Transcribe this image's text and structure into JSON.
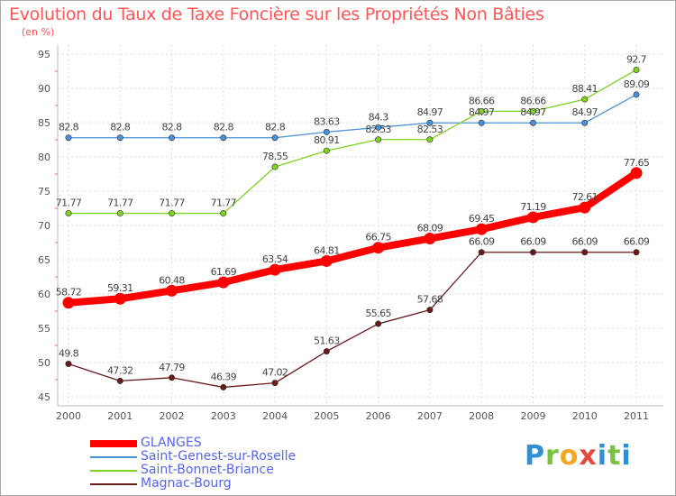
{
  "title": "Evolution du Taux de Taxe Foncière sur les Propriétés Non Bâties",
  "subtitle": "(en %)",
  "brand": "Proxiti",
  "chart_data": {
    "type": "line",
    "x": [
      "2000",
      "2001",
      "2002",
      "2003",
      "2004",
      "2005",
      "2006",
      "2007",
      "2008",
      "2009",
      "2010",
      "2011"
    ],
    "ylim": [
      45,
      95
    ],
    "yticks": [
      "45",
      "50",
      "55",
      "60",
      "65",
      "70",
      "75",
      "80",
      "85",
      "90",
      "95"
    ],
    "grid": true,
    "legend_placement": "bottom-left",
    "series": [
      {
        "name": "GLANGES",
        "color": "#ff0000",
        "values": [
          58.72,
          59.31,
          60.48,
          61.69,
          63.54,
          64.81,
          66.75,
          68.09,
          69.45,
          71.19,
          72.61,
          77.65
        ],
        "labels": [
          "58.72",
          "59.31",
          "60.48",
          "61.69",
          "63.54",
          "64.81",
          "66.75",
          "68.09",
          "69.45",
          "71.19",
          "72.61",
          "77.65"
        ]
      },
      {
        "name": "Saint-Genest-sur-Roselle",
        "color": "#4a90d9",
        "values": [
          82.8,
          82.8,
          82.8,
          82.8,
          82.8,
          83.63,
          84.3,
          84.97,
          84.97,
          84.97,
          84.97,
          89.09
        ],
        "labels": [
          "82.8",
          "82.8",
          "82.8",
          "82.8",
          "82.8",
          "83.63",
          "84.3",
          "84.97",
          "84.97",
          "84.97",
          "84.97",
          "89.09"
        ]
      },
      {
        "name": "Saint-Bonnet-Briance",
        "color": "#7ed321",
        "values": [
          71.77,
          71.77,
          71.77,
          71.77,
          78.55,
          80.91,
          82.53,
          82.53,
          86.66,
          86.66,
          88.41,
          92.7
        ],
        "labels": [
          "71.77",
          "71.77",
          "71.77",
          "71.77",
          "78.55",
          "80.91",
          "82.53",
          "82.53",
          "86.66",
          "86.66",
          "88.41",
          "92.7"
        ]
      },
      {
        "name": "Magnac-Bourg",
        "color": "#6b1a1a",
        "values": [
          49.8,
          47.32,
          47.79,
          46.39,
          47.02,
          51.63,
          55.65,
          57.68,
          66.09,
          66.09,
          66.09,
          66.09
        ],
        "labels": [
          "49.8",
          "47.32",
          "47.79",
          "46.39",
          "47.02",
          "51.63",
          "55.65",
          "57.68",
          "66.09",
          "66.09",
          "66.09",
          "66.09"
        ]
      }
    ]
  }
}
